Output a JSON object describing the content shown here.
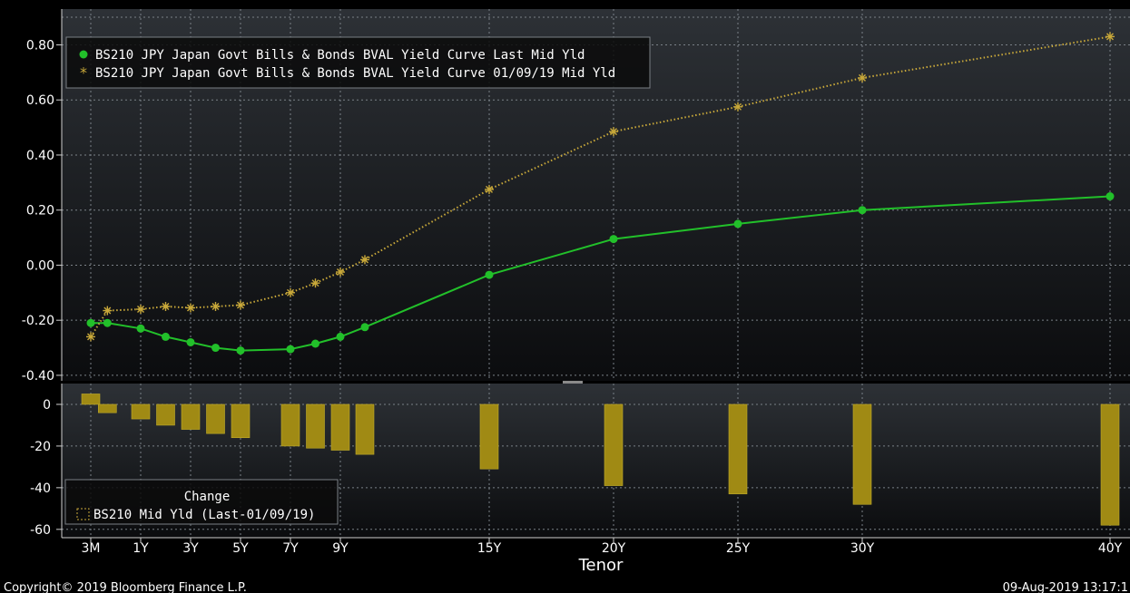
{
  "colors": {
    "current": "#22c02a",
    "previous": "#c9a93a",
    "bar": "#a08a14",
    "bar_edge": "#c2ad2a",
    "grid": "#7a8188",
    "axis": "#d0d0d0"
  },
  "chart_data": [
    {
      "type": "line",
      "categories": [
        "3M",
        "6M",
        "1Y",
        "2Y",
        "3Y",
        "4Y",
        "5Y",
        "7Y",
        "8Y",
        "9Y",
        "10Y",
        "15Y",
        "20Y",
        "25Y",
        "30Y",
        "40Y"
      ],
      "x_years": [
        0.25,
        0.5,
        1,
        2,
        3,
        4,
        5,
        7,
        8,
        9,
        10,
        15,
        20,
        25,
        30,
        40
      ],
      "xtick_labels": [
        "3M",
        "1Y",
        "3Y",
        "5Y",
        "7Y",
        "9Y",
        "15Y",
        "20Y",
        "25Y",
        "30Y",
        "40Y"
      ],
      "xtick_years": [
        0.25,
        1,
        3,
        5,
        7,
        9,
        15,
        20,
        25,
        30,
        40
      ],
      "xlabel": "Tenor",
      "ylim": [
        -0.42,
        0.93
      ],
      "yticks": [
        -0.4,
        -0.2,
        0.0,
        0.2,
        0.4,
        0.6,
        0.8
      ],
      "ytick_labels": [
        "-0.40",
        "-0.20",
        "0.00",
        "0.20",
        "0.40",
        "0.60",
        "0.80"
      ],
      "grid": true,
      "legend": "top-left",
      "series": [
        {
          "name": "BS210 JPY Japan Govt Bills & Bonds BVAL Yield Curve Last Mid Yld",
          "marker": "circle",
          "line": "solid",
          "values": [
            -0.21,
            -0.21,
            -0.23,
            -0.26,
            -0.28,
            -0.3,
            -0.31,
            -0.305,
            -0.285,
            -0.26,
            -0.225,
            -0.035,
            0.095,
            0.15,
            0.2,
            0.25
          ]
        },
        {
          "name": "BS210 JPY Japan Govt Bills & Bonds BVAL Yield Curve 01/09/19 Mid Yld",
          "marker": "asterisk",
          "line": "dotted",
          "values": [
            -0.26,
            -0.165,
            -0.16,
            -0.15,
            -0.155,
            -0.15,
            -0.145,
            -0.1,
            -0.065,
            -0.025,
            0.02,
            0.275,
            0.485,
            0.575,
            0.68,
            0.83
          ]
        }
      ]
    },
    {
      "type": "bar",
      "categories": [
        "3M",
        "6M",
        "1Y",
        "2Y",
        "3Y",
        "4Y",
        "5Y",
        "7Y",
        "8Y",
        "9Y",
        "10Y",
        "15Y",
        "20Y",
        "25Y",
        "30Y",
        "40Y"
      ],
      "x_years": [
        0.25,
        0.5,
        1,
        2,
        3,
        4,
        5,
        7,
        8,
        9,
        10,
        15,
        20,
        25,
        30,
        40
      ],
      "ylim": [
        -64,
        10
      ],
      "yticks": [
        -60,
        -40,
        -20,
        0
      ],
      "ytick_labels": [
        "-60",
        "-40",
        "-20",
        "0"
      ],
      "grid": true,
      "legend": "bottom-left",
      "legend_title": "Change",
      "series": [
        {
          "name": "BS210 Mid Yld (Last-01/09/19)",
          "values": [
            5,
            -4,
            -7,
            -10,
            -12,
            -14,
            -16,
            -20,
            -21,
            -22,
            -24,
            -31,
            -39,
            -43,
            -48,
            -58
          ]
        }
      ]
    }
  ],
  "footer": {
    "copyright": "Copyright© 2019 Bloomberg Finance L.P.",
    "timestamp": "09-Aug-2019 13:17:1"
  }
}
